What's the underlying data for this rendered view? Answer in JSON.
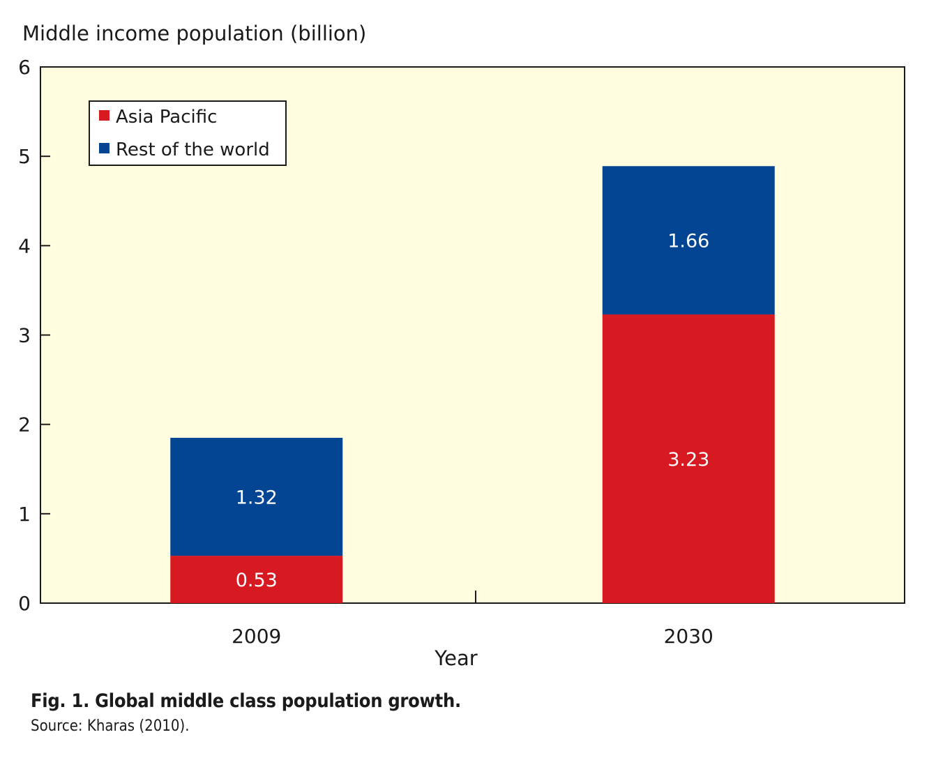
{
  "chart_data": {
    "type": "bar",
    "stacked": true,
    "ylabel": "Middle income population (billion)",
    "xlabel": "Year",
    "categories": [
      "2009",
      "2030"
    ],
    "ylim": [
      0,
      6
    ],
    "yticks": [
      0,
      1,
      2,
      3,
      4,
      5,
      6
    ],
    "series": [
      {
        "name": "Asia Pacific",
        "values": [
          0.53,
          3.23
        ],
        "labels": [
          "0.53",
          "3.23"
        ],
        "color": "#d71a21"
      },
      {
        "name": "Rest of the world",
        "values": [
          1.32,
          1.66
        ],
        "labels": [
          "1.32",
          "1.66"
        ],
        "color": "#034593"
      }
    ],
    "legend_position": "top-left",
    "plot_background": "#fffce0"
  },
  "caption": {
    "title": "Fig. 1.  Global middle class population growth.",
    "source": "Source: Kharas (2010)."
  }
}
